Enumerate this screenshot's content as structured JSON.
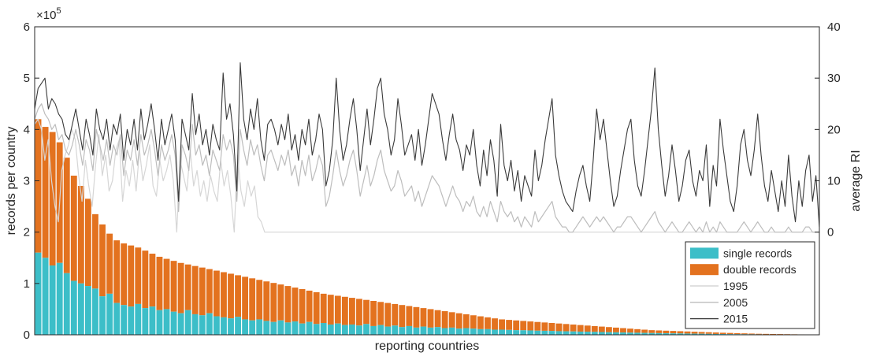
{
  "chart_data": {
    "type": "bar",
    "xlabel": "reporting countries",
    "ylabel_left": "records per country",
    "ylabel_right": "average RI",
    "exponent_label": "×10",
    "exponent_sup": "5",
    "y_left_lim": [
      0,
      600000
    ],
    "y_left_ticks": [
      0,
      100000,
      200000,
      300000,
      400000,
      500000,
      600000
    ],
    "y_left_tick_labels": [
      "0",
      "1",
      "2",
      "3",
      "4",
      "5",
      "6"
    ],
    "y_right_lim": [
      -20,
      40
    ],
    "y_right_ticks": [
      0,
      10,
      20,
      30,
      40
    ],
    "y_right_tick_labels": [
      "0",
      "10",
      "20",
      "30",
      "40"
    ],
    "legend_position": "bottom-right",
    "colors": {
      "single": "#3cbec8",
      "double": "#e3721f",
      "l1995": "#d6d6d6",
      "l2005": "#bdbdbd",
      "l2015": "#3a3a3a",
      "axis": "#262626"
    },
    "legend": [
      {
        "label": "single records",
        "key": "single",
        "kind": "patch"
      },
      {
        "label": "double records",
        "key": "double",
        "kind": "patch"
      },
      {
        "label": "1995",
        "key": "l1995",
        "kind": "line"
      },
      {
        "label": "2005",
        "key": "l2005",
        "kind": "line"
      },
      {
        "label": "2015",
        "key": "l2015",
        "kind": "line"
      }
    ],
    "bar_totals_x1e5": [
      4.2,
      4.05,
      3.95,
      3.75,
      3.45,
      3.1,
      2.9,
      2.65,
      2.35,
      2.15,
      1.97,
      1.84,
      1.78,
      1.74,
      1.7,
      1.64,
      1.58,
      1.52,
      1.48,
      1.44,
      1.4,
      1.37,
      1.34,
      1.31,
      1.28,
      1.25,
      1.22,
      1.19,
      1.16,
      1.13,
      1.1,
      1.07,
      1.04,
      1.01,
      0.98,
      0.95,
      0.92,
      0.89,
      0.86,
      0.83,
      0.8,
      0.78,
      0.76,
      0.74,
      0.72,
      0.7,
      0.68,
      0.66,
      0.64,
      0.62,
      0.6,
      0.58,
      0.56,
      0.54,
      0.52,
      0.5,
      0.48,
      0.46,
      0.44,
      0.42,
      0.4,
      0.38,
      0.36,
      0.34,
      0.32,
      0.3,
      0.29,
      0.28,
      0.27,
      0.26,
      0.25,
      0.24,
      0.23,
      0.22,
      0.21,
      0.2,
      0.19,
      0.18,
      0.17,
      0.16,
      0.15,
      0.14,
      0.13,
      0.12,
      0.11,
      0.1,
      0.09,
      0.085,
      0.08,
      0.075,
      0.07,
      0.065,
      0.06,
      0.055,
      0.05,
      0.045,
      0.04,
      0.036,
      0.032,
      0.028,
      0.024,
      0.02,
      0.018,
      0.016,
      0.014,
      0.012,
      0.01,
      0.008,
      0.006,
      0.005
    ],
    "bar_single_x1e5": [
      1.6,
      1.5,
      1.35,
      1.4,
      1.2,
      1.05,
      1.0,
      0.95,
      0.9,
      0.75,
      0.8,
      0.62,
      0.58,
      0.55,
      0.6,
      0.52,
      0.55,
      0.48,
      0.5,
      0.45,
      0.42,
      0.48,
      0.4,
      0.38,
      0.42,
      0.36,
      0.34,
      0.32,
      0.35,
      0.3,
      0.28,
      0.3,
      0.27,
      0.25,
      0.28,
      0.24,
      0.26,
      0.22,
      0.25,
      0.21,
      0.23,
      0.2,
      0.22,
      0.19,
      0.2,
      0.18,
      0.21,
      0.17,
      0.19,
      0.16,
      0.18,
      0.15,
      0.17,
      0.14,
      0.16,
      0.14,
      0.15,
      0.13,
      0.14,
      0.12,
      0.13,
      0.12,
      0.11,
      0.11,
      0.1,
      0.1,
      0.095,
      0.09,
      0.088,
      0.085,
      0.08,
      0.078,
      0.075,
      0.07,
      0.068,
      0.065,
      0.062,
      0.06,
      0.057,
      0.054,
      0.05,
      0.048,
      0.045,
      0.042,
      0.04,
      0.037,
      0.034,
      0.032,
      0.03,
      0.028,
      0.026,
      0.024,
      0.022,
      0.02,
      0.018,
      0.016,
      0.015,
      0.013,
      0.012,
      0.011,
      0.01,
      0.009,
      0.008,
      0.007,
      0.006,
      0.005,
      0.004,
      0.004,
      0.003,
      0.003
    ],
    "ri_2015": [
      24,
      28,
      29,
      30,
      24,
      26,
      25,
      23,
      22,
      19,
      18,
      21,
      24,
      20,
      16,
      22,
      19,
      15,
      24,
      20,
      18,
      22,
      16,
      21,
      19,
      23,
      14,
      20,
      17,
      22,
      16,
      24,
      18,
      21,
      25,
      20,
      14,
      22,
      17,
      20,
      23,
      18,
      6,
      22,
      19,
      16,
      27,
      19,
      23,
      17,
      20,
      15,
      21,
      18,
      16,
      31,
      22,
      25,
      19,
      8,
      33,
      22,
      18,
      24,
      20,
      26,
      18,
      14,
      21,
      22,
      20,
      17,
      21,
      18,
      23,
      16,
      19,
      14,
      20,
      17,
      22,
      15,
      18,
      23,
      20,
      9,
      12,
      18,
      30,
      20,
      14,
      17,
      22,
      26,
      20,
      12,
      18,
      24,
      17,
      22,
      28,
      30,
      23,
      20,
      15,
      18,
      26,
      21,
      15,
      17,
      19,
      14,
      20,
      13,
      17,
      22,
      27,
      25,
      23,
      18,
      14,
      19,
      23,
      18,
      16,
      12,
      17,
      15,
      20,
      13,
      9,
      16,
      11,
      18,
      14,
      7,
      21,
      13,
      10,
      14,
      8,
      12,
      6,
      11,
      9,
      7,
      16,
      10,
      13,
      18,
      22,
      26,
      15,
      11,
      8,
      6,
      5,
      4,
      8,
      11,
      13,
      9,
      6,
      14,
      24,
      18,
      22,
      16,
      10,
      5,
      7,
      12,
      16,
      20,
      22,
      14,
      9,
      7,
      12,
      18,
      24,
      32,
      20,
      13,
      7,
      11,
      17,
      12,
      6,
      9,
      14,
      16,
      10,
      7,
      12,
      10,
      17,
      5,
      13,
      9,
      22,
      16,
      11,
      6,
      4,
      9,
      17,
      20,
      14,
      11,
      16,
      23,
      15,
      9,
      6,
      12,
      8,
      4,
      10,
      5,
      15,
      7,
      2,
      10,
      5,
      12,
      15,
      6,
      11,
      1
    ],
    "ri_2005": [
      22,
      24,
      25,
      23,
      22,
      20,
      21,
      18,
      19,
      16,
      15,
      17,
      20,
      17,
      13,
      18,
      16,
      12,
      20,
      17,
      14,
      18,
      13,
      17,
      15,
      19,
      11,
      16,
      14,
      18,
      13,
      19,
      15,
      17,
      20,
      16,
      11,
      17,
      14,
      16,
      19,
      15,
      4,
      17,
      15,
      12,
      21,
      15,
      17,
      13,
      15,
      11,
      16,
      14,
      12,
      19,
      16,
      18,
      15,
      6,
      20,
      16,
      13,
      18,
      15,
      17,
      13,
      10,
      15,
      16,
      14,
      12,
      15,
      13,
      16,
      11,
      13,
      9,
      14,
      11,
      15,
      10,
      12,
      15,
      13,
      5,
      7,
      11,
      16,
      12,
      9,
      11,
      14,
      16,
      12,
      7,
      10,
      13,
      9,
      11,
      14,
      16,
      12,
      10,
      8,
      9,
      12,
      10,
      7,
      8,
      9,
      6,
      8,
      5,
      7,
      9,
      11,
      10,
      9,
      7,
      5,
      7,
      9,
      7,
      6,
      4,
      6,
      5,
      7,
      4,
      3,
      5,
      3,
      6,
      4,
      2,
      6,
      4,
      3,
      4,
      2,
      3,
      1,
      3,
      2,
      1,
      4,
      2,
      3,
      4,
      5,
      6,
      3,
      2,
      1,
      1,
      0,
      0,
      1,
      2,
      3,
      2,
      1,
      2,
      3,
      2,
      3,
      2,
      1,
      0,
      1,
      1,
      2,
      3,
      3,
      2,
      1,
      0,
      1,
      2,
      3,
      4,
      2,
      1,
      0,
      1,
      2,
      1,
      0,
      0,
      1,
      2,
      1,
      0,
      1,
      0,
      2,
      0,
      1,
      0,
      2,
      1,
      0,
      0,
      0,
      0,
      1,
      2,
      1,
      0,
      1,
      2,
      1,
      0,
      0,
      1,
      0,
      0,
      0,
      0,
      1,
      0,
      0,
      0,
      0,
      1,
      1,
      0,
      0,
      0
    ],
    "ri_1995": [
      21,
      22,
      20,
      14,
      18,
      10,
      5,
      2,
      12,
      15,
      17,
      20,
      18,
      11,
      6,
      14,
      9,
      5,
      13,
      19,
      11,
      15,
      8,
      10,
      16,
      18,
      6,
      12,
      9,
      14,
      8,
      16,
      10,
      13,
      17,
      9,
      7,
      14,
      10,
      12,
      15,
      10,
      0,
      14,
      11,
      8,
      16,
      9,
      12,
      7,
      10,
      6,
      11,
      8,
      6,
      14,
      9,
      12,
      7,
      0,
      15,
      8,
      5,
      10,
      7,
      9,
      3,
      2,
      0,
      0,
      0,
      0,
      0,
      0,
      0,
      0,
      0,
      0,
      0,
      0,
      0,
      0,
      0,
      0,
      0,
      0,
      0,
      0,
      0,
      0,
      0,
      0,
      0,
      0,
      0,
      0,
      0,
      0,
      0,
      0,
      0,
      0,
      0,
      0,
      0,
      0,
      0,
      0,
      0,
      0,
      0,
      0,
      0,
      0,
      0,
      0,
      0,
      0,
      0,
      0,
      0,
      0,
      0,
      0,
      0,
      0,
      0,
      0,
      0,
      0,
      0,
      0,
      0,
      0,
      0,
      0,
      0,
      0,
      0,
      0,
      0,
      0,
      0,
      0,
      0,
      0,
      0,
      0,
      0,
      0,
      0,
      0,
      0,
      0,
      0,
      0,
      0,
      0,
      0,
      0,
      0,
      0,
      0,
      0,
      0,
      0,
      0,
      0,
      0,
      0,
      0,
      0,
      0,
      0,
      0,
      0,
      0,
      0,
      0,
      0,
      0,
      0,
      0,
      0,
      0,
      0,
      0,
      0,
      0,
      0,
      0,
      0,
      0,
      0,
      0,
      0,
      0,
      0,
      0,
      0,
      0,
      0,
      0,
      0,
      0,
      0,
      0,
      0,
      0,
      0,
      0,
      0,
      0,
      0,
      0,
      0,
      0,
      0,
      0,
      0,
      0,
      0,
      0,
      0,
      0,
      0,
      0,
      0,
      0,
      0,
      0,
      0,
      0
    ]
  }
}
